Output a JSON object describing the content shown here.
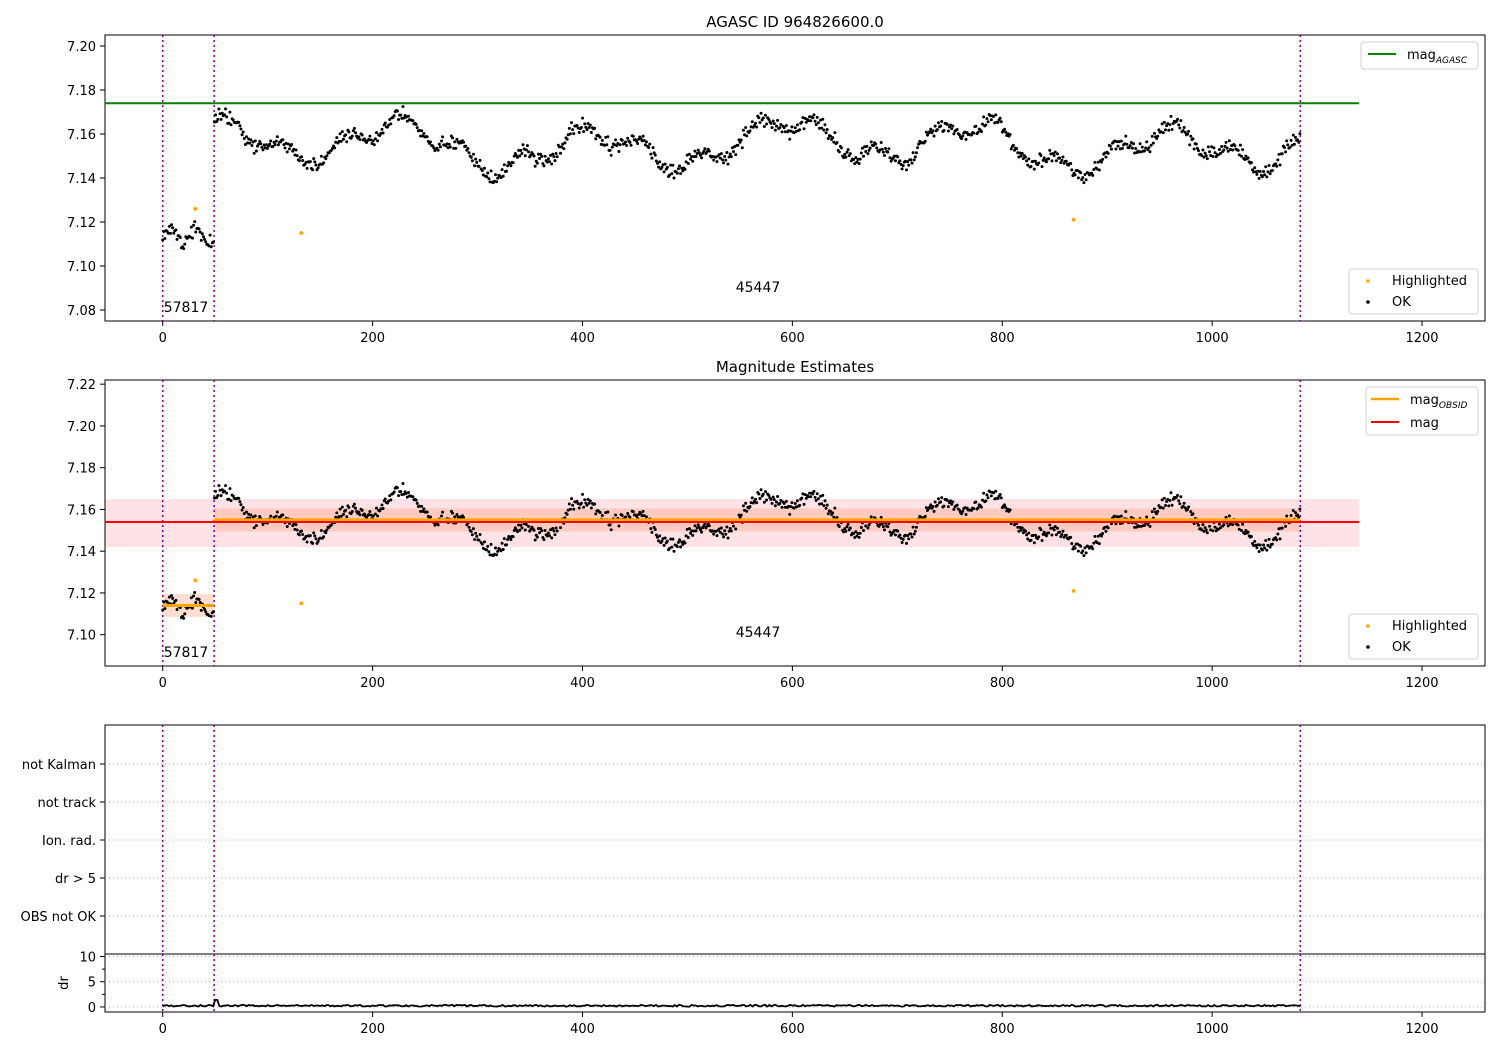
{
  "figure": {
    "title": "AGASC ID 964826600.0"
  },
  "colors": {
    "ok": "#000000",
    "highlighted": "#ffa500",
    "mag_agasc": "#008000",
    "mag": "#ff0000",
    "mag_obsid": "#ffa500",
    "obsid_line": "#800080",
    "band_mag": "#ffb6c1",
    "band_obsid": "#ffa07a"
  },
  "chart_data": [
    {
      "type": "scatter",
      "title": "",
      "xlim": [
        -55,
        1260
      ],
      "ylim": [
        7.075,
        7.205
      ],
      "xticks": [
        "0",
        "200",
        "400",
        "600",
        "800",
        "1000",
        "1200"
      ],
      "yticks": [
        "7.08",
        "7.10",
        "7.12",
        "7.14",
        "7.16",
        "7.18",
        "7.20"
      ],
      "ylabel": "",
      "legend_upper": [
        "mag_AGASC"
      ],
      "legend_lower": [
        "Highlighted",
        "OK"
      ],
      "obsid_labels": [
        "57817",
        "45447"
      ],
      "obsid_boundaries": [
        0,
        49,
        1084
      ],
      "mag_agasc": 7.174,
      "highlighted": [
        [
          31,
          7.126
        ],
        [
          132,
          7.115
        ],
        [
          868,
          7.121
        ]
      ]
    },
    {
      "type": "scatter",
      "title": "Magnitude Estimates",
      "xlim": [
        -55,
        1260
      ],
      "ylim": [
        7.085,
        7.222
      ],
      "xticks": [
        "0",
        "200",
        "400",
        "600",
        "800",
        "1000",
        "1200"
      ],
      "yticks": [
        "7.10",
        "7.12",
        "7.14",
        "7.16",
        "7.18",
        "7.20",
        "7.22"
      ],
      "ylabel": "",
      "legend_upper": [
        "mag_OBSID",
        "mag"
      ],
      "legend_lower": [
        "Highlighted",
        "OK"
      ],
      "obsid_labels": [
        "57817",
        "45447"
      ],
      "obsid_boundaries": [
        0,
        49,
        1084
      ],
      "mag": 7.154,
      "mag_band": [
        7.142,
        7.165
      ],
      "mag_obsid": [
        {
          "x": [
            0,
            49
          ],
          "y": 7.114
        },
        {
          "x": [
            49,
            1084
          ],
          "y": 7.155
        }
      ],
      "highlighted": [
        [
          31,
          7.126
        ],
        [
          132,
          7.115
        ],
        [
          868,
          7.121
        ]
      ]
    },
    {
      "type": "categorical-flags",
      "categories": [
        "not Kalman",
        "not track",
        "Ion. rad.",
        "dr > 5",
        "OBS not OK"
      ],
      "xticks": [],
      "obsid_boundaries": [
        0,
        49,
        1084
      ]
    },
    {
      "type": "line",
      "xlim": [
        -55,
        1260
      ],
      "ylim": [
        -1,
        10.5
      ],
      "xticks": [
        "0",
        "200",
        "400",
        "600",
        "800",
        "1000",
        "1200"
      ],
      "yticks": [
        "0",
        "5",
        "10"
      ],
      "ylabel": "dr",
      "obsid_boundaries": [
        0,
        49,
        1084
      ],
      "x_range": [
        0,
        1084
      ],
      "typical_value": 0.25
    }
  ]
}
